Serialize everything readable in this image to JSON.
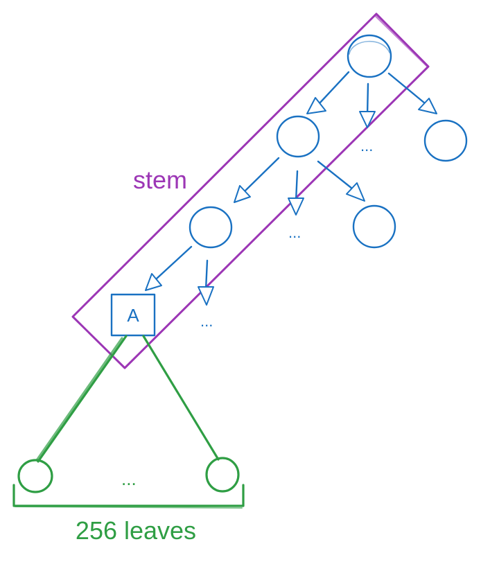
{
  "diagram": {
    "stem_label": "stem",
    "leaves_label": "256 leaves",
    "node_a_label": "A",
    "ellipsis": "...",
    "colors": {
      "tree": "#1971c2",
      "stem": "#9c36b5",
      "leaves": "#2f9e44"
    }
  }
}
